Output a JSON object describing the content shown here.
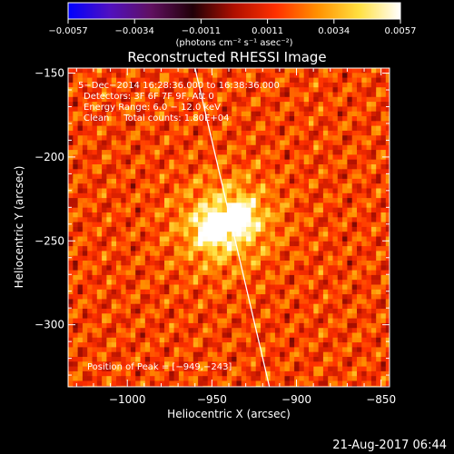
{
  "chart_data": {
    "type": "heatmap",
    "title": "Reconstructed RHESSI Image",
    "xlabel": "Heliocentric X (arcsec)",
    "ylabel": "Heliocentric Y (arcsec)",
    "xlim": [
      -1035,
      -845
    ],
    "ylim": [
      -337,
      -147
    ],
    "x_ticks": [
      -1000,
      -950,
      -900,
      -850
    ],
    "x_tick_labels": [
      "−1000",
      "−950",
      "−900",
      "−850"
    ],
    "y_ticks": [
      -150,
      -200,
      -250,
      -300
    ],
    "y_tick_labels": [
      "−150",
      "−200",
      "−250",
      "−300"
    ],
    "colorbar": {
      "range": [
        -0.0057,
        0.0057
      ],
      "tick_labels": [
        "−0.0057",
        "−0.0034",
        "−0.0011",
        "0.0011",
        "0.0034",
        "0.0057"
      ],
      "units": "(photons cm⁻² s⁻¹ asec⁻²)",
      "colormap": [
        "#0000ff",
        "#5010c0",
        "#601060",
        "#200008",
        "#b01000",
        "#ff3000",
        "#ff9000",
        "#ffe040",
        "#ffffff"
      ]
    },
    "annotations": [
      "5−Dec−2014 16:28:36.000 to 16:38:36.000",
      "Detectors: 3F 6F 7F 9F, Att 0",
      "Energy Range: 6.0 − 12.0 keV",
      "Clean     Total counts: 1.80E+04"
    ],
    "peak_label": "Position of Peak = [−949,−243]",
    "sources": [
      {
        "x": -949,
        "y": -243,
        "peak": 0.0057
      },
      {
        "x": -934,
        "y": -236,
        "peak": 0.005
      }
    ],
    "limb_line": {
      "x": [
        -960,
        -916
      ],
      "y": [
        -147,
        -337
      ]
    }
  },
  "footer": {
    "timestamp": "21-Aug-2017 06:44"
  }
}
